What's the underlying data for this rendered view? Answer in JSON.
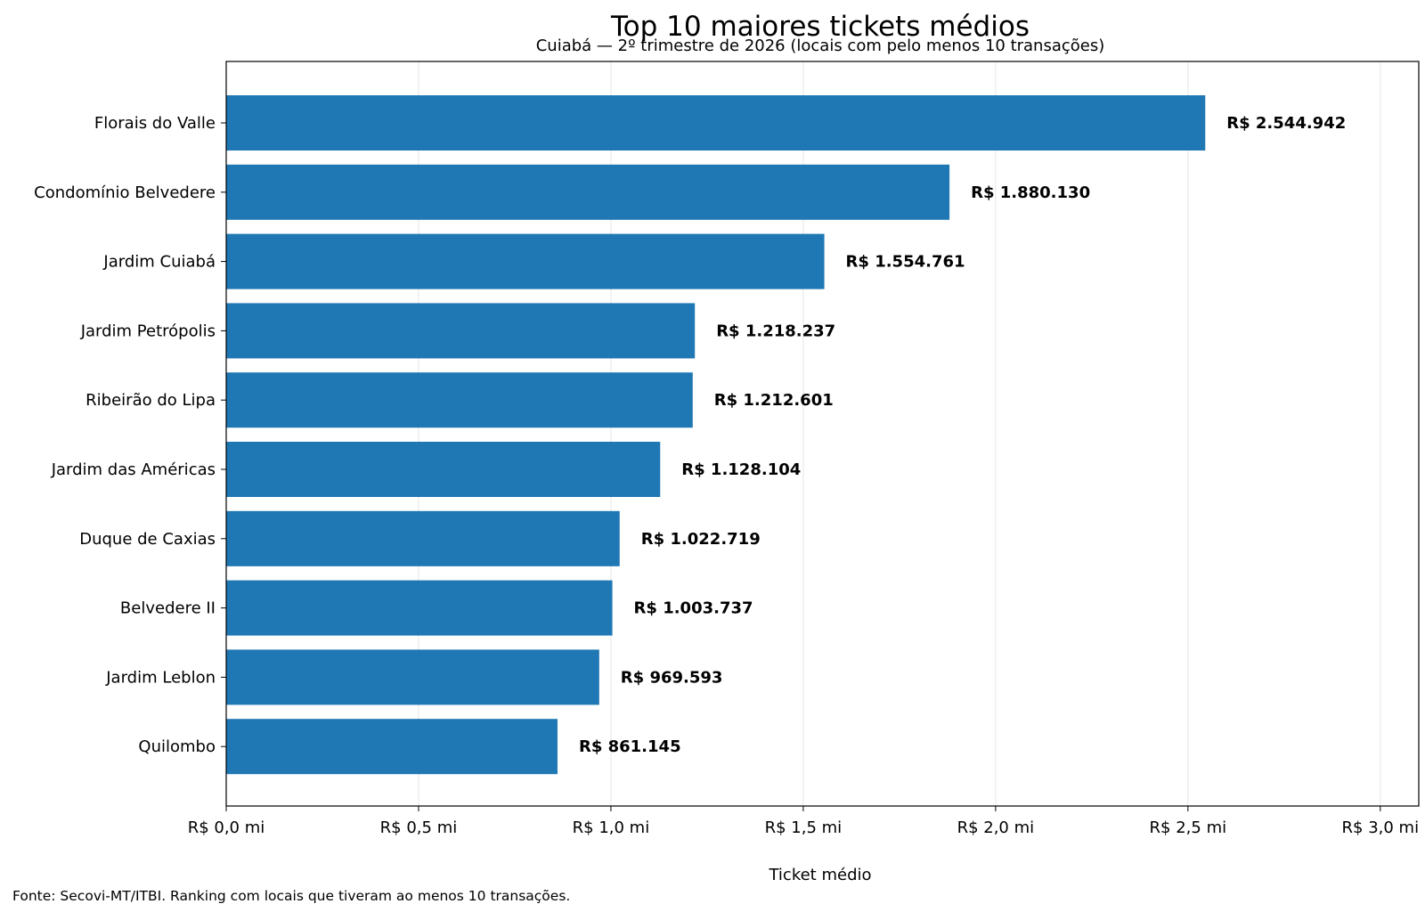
{
  "chart_data": {
    "type": "bar",
    "orientation": "horizontal",
    "title": "Top 10 maiores tickets médios",
    "subtitle": "Cuiabá — 2º trimestre de 2026 (locais com pelo menos 10 transações)",
    "xlabel": "Ticket médio",
    "ylabel": "",
    "xlim": [
      0,
      3100000
    ],
    "grid": true,
    "bar_color": "#1f77b4",
    "categories": [
      "Florais do Valle",
      "Condomínio Belvedere",
      "Jardim Cuiabá",
      "Jardim Petrópolis",
      "Ribeirão do Lipa",
      "Jardim das Américas",
      "Duque de Caxias",
      "Belvedere II",
      "Jardim Leblon",
      "Quilombo"
    ],
    "values": [
      2544942,
      1880130,
      1554761,
      1218237,
      1212601,
      1128104,
      1022719,
      1003737,
      969593,
      861145
    ],
    "value_labels": [
      "R$ 2.544.942",
      "R$ 1.880.130",
      "R$ 1.554.761",
      "R$ 1.218.237",
      "R$ 1.212.601",
      "R$ 1.128.104",
      "R$ 1.022.719",
      "R$ 1.003.737",
      "R$ 969.593",
      "R$ 861.145"
    ],
    "x_ticks": [
      0,
      500000,
      1000000,
      1500000,
      2000000,
      2500000,
      3000000
    ],
    "x_tick_labels": [
      "R$ 0,0 mi",
      "R$ 0,5 mi",
      "R$ 1,0 mi",
      "R$ 1,5 mi",
      "R$ 2,0 mi",
      "R$ 2,5 mi",
      "R$ 3,0 mi"
    ]
  },
  "footnote": "Fonte: Secovi-MT/ITBI. Ranking com locais que tiveram ao menos 10 transações."
}
